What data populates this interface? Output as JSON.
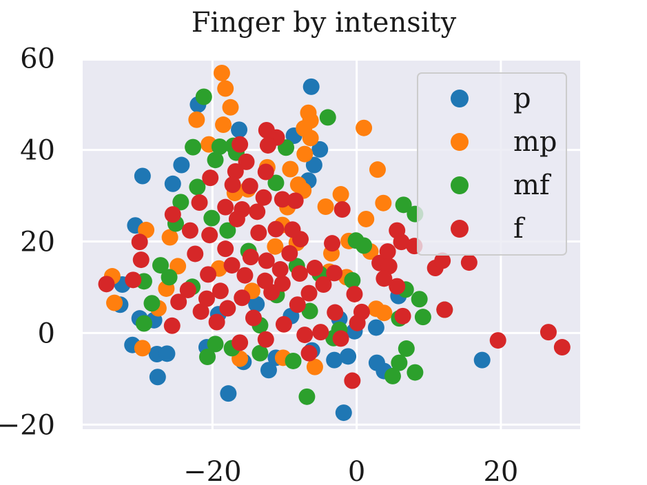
{
  "chart_data": {
    "type": "scatter",
    "title": "Finger by intensity",
    "xlabel": "",
    "ylabel": "",
    "xlim": [
      -38,
      31
    ],
    "ylim": [
      -21,
      59.5
    ],
    "xticks": [
      -20,
      0,
      20
    ],
    "yticks": [
      -20,
      0,
      20,
      40,
      60
    ],
    "xtick_labels": [
      "−20",
      "0",
      "20"
    ],
    "ytick_labels": [
      "−20",
      "0",
      "20",
      "40",
      "60"
    ],
    "grid": true,
    "background": "#e9e9f2",
    "legend_position": "top-right",
    "series": [
      {
        "name": "p",
        "color": "#1f77b4",
        "points": [
          [
            -6.3,
            53.8
          ],
          [
            -22,
            49.9
          ],
          [
            -16.3,
            44.4
          ],
          [
            -8.7,
            43.1
          ],
          [
            -5.1,
            40.1
          ],
          [
            -24.3,
            36.7
          ],
          [
            -5.9,
            36.7
          ],
          [
            -25.5,
            32.6
          ],
          [
            -6.7,
            33.3
          ],
          [
            -29.7,
            34.3
          ],
          [
            -30.7,
            23.5
          ],
          [
            -30.1,
            3.2
          ],
          [
            -32.8,
            6.2
          ],
          [
            -31.1,
            -2.6
          ],
          [
            -27.7,
            -4.6
          ],
          [
            -26.3,
            -4.5
          ],
          [
            -27.6,
            -9.6
          ],
          [
            -17.8,
            -13.2
          ],
          [
            -12.2,
            -8.1
          ],
          [
            -15.7,
            -6.3
          ],
          [
            -3.1,
            -5.9
          ],
          [
            -1.2,
            -5.1
          ],
          [
            -1.8,
            -17.4
          ],
          [
            2.8,
            -6.5
          ],
          [
            3.8,
            -8.3
          ],
          [
            17.4,
            -5.9
          ],
          [
            2.7,
            1.2
          ],
          [
            5.8,
            8.1
          ],
          [
            -32.5,
            10.6
          ],
          [
            -28.1,
            2.8
          ],
          [
            -20.8,
            -3.1
          ],
          [
            -11.2,
            -5.4
          ],
          [
            -6.2,
            -3.8
          ],
          [
            -0.3,
            0.4
          ],
          [
            -19.2,
            4.1
          ],
          [
            -13.9,
            6.3
          ],
          [
            -9.1,
            3.7
          ],
          [
            -2.4,
            3.1
          ]
        ]
      },
      {
        "name": "mp",
        "color": "#ff7f0e",
        "points": [
          [
            -18.7,
            56.8
          ],
          [
            -18.2,
            53.4
          ],
          [
            -17.5,
            49.3
          ],
          [
            -22.2,
            46.6
          ],
          [
            -18.5,
            45.5
          ],
          [
            -20.5,
            41.2
          ],
          [
            -7.3,
            44.7
          ],
          [
            -6.4,
            46.4
          ],
          [
            -6.7,
            48.1
          ],
          [
            -6.4,
            42.6
          ],
          [
            1,
            44.8
          ],
          [
            -7.2,
            39.1
          ],
          [
            -9.2,
            35.8
          ],
          [
            2.9,
            35.7
          ],
          [
            -8.1,
            32.4
          ],
          [
            -7.4,
            31.1
          ],
          [
            -2.2,
            30.3
          ],
          [
            -4.3,
            27.6
          ],
          [
            3.7,
            28.4
          ],
          [
            1.3,
            24.9
          ],
          [
            -1.1,
            20.1
          ],
          [
            1.9,
            17.8
          ],
          [
            -33.9,
            12.4
          ],
          [
            -33.6,
            6.6
          ],
          [
            -29.2,
            22.5
          ],
          [
            -29.7,
            -3.3
          ],
          [
            -27.5,
            5.4
          ],
          [
            -16.2,
            -5.6
          ],
          [
            -10.2,
            -5.4
          ],
          [
            -5.8,
            -7.4
          ],
          [
            -1.4,
            12.2
          ],
          [
            2.7,
            5.3
          ],
          [
            3.8,
            4.4
          ],
          [
            -8.3,
            19.7
          ],
          [
            -3.5,
            17.4
          ],
          [
            -25.9,
            20.9
          ],
          [
            -19.1,
            14.1
          ],
          [
            -14.5,
            9.2
          ],
          [
            -10.3,
            23.6
          ],
          [
            -24.8,
            14.6
          ],
          [
            -16.9,
            30.6
          ],
          [
            -12.4,
            36.2
          ],
          [
            -15.1,
            31.4
          ],
          [
            -26.4,
            9.7
          ],
          [
            -9.6,
            27.5
          ],
          [
            -11.3,
            18.9
          ],
          [
            -3.8,
            13.4
          ]
        ]
      },
      {
        "name": "mf",
        "color": "#2ca02c",
        "points": [
          [
            -21.2,
            51.6
          ],
          [
            -4,
            47.1
          ],
          [
            -22.7,
            40.6
          ],
          [
            -19,
            40.7
          ],
          [
            -17.1,
            40.9
          ],
          [
            -16.7,
            39.4
          ],
          [
            -9.8,
            40.5
          ],
          [
            -19.6,
            37.8
          ],
          [
            -11.2,
            32.8
          ],
          [
            -22.1,
            31.9
          ],
          [
            -24.4,
            28.6
          ],
          [
            6.5,
            28
          ],
          [
            8.1,
            26
          ],
          [
            -25.1,
            23.9
          ],
          [
            -0.1,
            20.2
          ],
          [
            1,
            19.1
          ],
          [
            -27.2,
            14.8
          ],
          [
            -29.5,
            11.3
          ],
          [
            -28.4,
            6.5
          ],
          [
            -26,
            12.2
          ],
          [
            -29.5,
            2.1
          ],
          [
            -19.6,
            -2.4
          ],
          [
            -20.7,
            -5.2
          ],
          [
            -17.3,
            -3.3
          ],
          [
            -13.4,
            -4.4
          ],
          [
            -8.8,
            -6.1
          ],
          [
            -6.9,
            -13.9
          ],
          [
            5,
            -9.4
          ],
          [
            5.9,
            -6.5
          ],
          [
            6.9,
            -3.4
          ],
          [
            8.1,
            -8.6
          ],
          [
            5.9,
            3.2
          ],
          [
            9.2,
            3.5
          ],
          [
            8.7,
            7.4
          ],
          [
            6.8,
            9.5
          ],
          [
            12.2,
            5.1
          ],
          [
            -2.4,
            0.7
          ],
          [
            -3.2,
            -1.1
          ],
          [
            -15,
            17.9
          ],
          [
            -11.1,
            8.3
          ],
          [
            -8.3,
            14.6
          ],
          [
            -5.1,
            12.9
          ],
          [
            -17.9,
            22.4
          ],
          [
            -22.8,
            10.1
          ],
          [
            -20.1,
            25.1
          ],
          [
            -13.4,
            1.7
          ],
          [
            -6.5,
            4.8
          ],
          [
            -0.6,
            11.5
          ]
        ]
      },
      {
        "name": "f",
        "color": "#d62728",
        "points": [
          [
            -12.5,
            44.3
          ],
          [
            -11.1,
            42.7
          ],
          [
            -12.3,
            41
          ],
          [
            -16.2,
            41.2
          ],
          [
            -15.3,
            37.4
          ],
          [
            -12.6,
            35.2
          ],
          [
            -16.8,
            35.3
          ],
          [
            -20.3,
            33.9
          ],
          [
            -17.2,
            32.4
          ],
          [
            -14.8,
            32.1
          ],
          [
            -12.9,
            29.6
          ],
          [
            -10.3,
            29.2
          ],
          [
            -8.5,
            28.9
          ],
          [
            -21.8,
            28.5
          ],
          [
            -2,
            27
          ],
          [
            -25.5,
            25.9
          ],
          [
            -15.9,
            27
          ],
          [
            -7.8,
            20.5
          ],
          [
            -3.4,
            19.6
          ],
          [
            5.6,
            22.4
          ],
          [
            6.2,
            19.9
          ],
          [
            8,
            19
          ],
          [
            -30.1,
            19.9
          ],
          [
            -29.9,
            16
          ],
          [
            -31,
            11.6
          ],
          [
            -34.7,
            10.7
          ],
          [
            3.2,
            15.3
          ],
          [
            4.3,
            17.8
          ],
          [
            4.5,
            14.6
          ],
          [
            3.8,
            11.9
          ],
          [
            5.6,
            10.2
          ],
          [
            10.9,
            14.2
          ],
          [
            11.9,
            15.8
          ],
          [
            15.6,
            15.4
          ],
          [
            12.2,
            5.1
          ],
          [
            6.4,
            3.7
          ],
          [
            0.7,
            4.6
          ],
          [
            -0.3,
            8.5
          ],
          [
            0.1,
            2.2
          ],
          [
            -2.2,
            -1.2
          ],
          [
            -0.6,
            -10.4
          ],
          [
            -6.6,
            -4.4
          ],
          [
            -5,
            0.2
          ],
          [
            -3,
            4.5
          ],
          [
            19.6,
            -1.6
          ],
          [
            26.6,
            0.2
          ],
          [
            28.5,
            -3.1
          ],
          [
            -10.3,
            10.8
          ],
          [
            -7.9,
            13
          ],
          [
            -5.8,
            14.2
          ],
          [
            -3.1,
            13.1
          ],
          [
            -12.5,
            15.8
          ],
          [
            -18.2,
            18.4
          ],
          [
            -15.5,
            12.6
          ],
          [
            -20.6,
            12.8
          ],
          [
            -23.4,
            9.4
          ],
          [
            -17.9,
            5.4
          ],
          [
            -14.3,
            3.3
          ],
          [
            -10.1,
            1.9
          ],
          [
            -8.2,
            6.2
          ],
          [
            -24.7,
            6.8
          ],
          [
            -22.4,
            17.3
          ],
          [
            -20.4,
            21.4
          ],
          [
            -16.6,
            24.9
          ],
          [
            -13.6,
            21.9
          ],
          [
            -11.2,
            22.7
          ],
          [
            -9.3,
            17.4
          ],
          [
            -6.6,
            8.7
          ],
          [
            -4.6,
            10.6
          ],
          [
            -19.4,
            2.4
          ],
          [
            -16.2,
            -2.1
          ],
          [
            -12.6,
            -1.4
          ],
          [
            -11.8,
            8.9
          ],
          [
            -14.7,
            16.6
          ],
          [
            -18.9,
            9.2
          ],
          [
            -21.6,
            4.7
          ],
          [
            -10.6,
            13.9
          ],
          [
            -8.9,
            22.6
          ],
          [
            -13.8,
            26.5
          ],
          [
            -18.2,
            27.5
          ],
          [
            -23.1,
            22.4
          ],
          [
            -25.6,
            1.6
          ],
          [
            -7.2,
            -0.4
          ],
          [
            -15.9,
            7.7
          ],
          [
            -12.7,
            11.4
          ],
          [
            -17.3,
            14.8
          ],
          [
            -20.8,
            7.5
          ]
        ]
      }
    ]
  }
}
